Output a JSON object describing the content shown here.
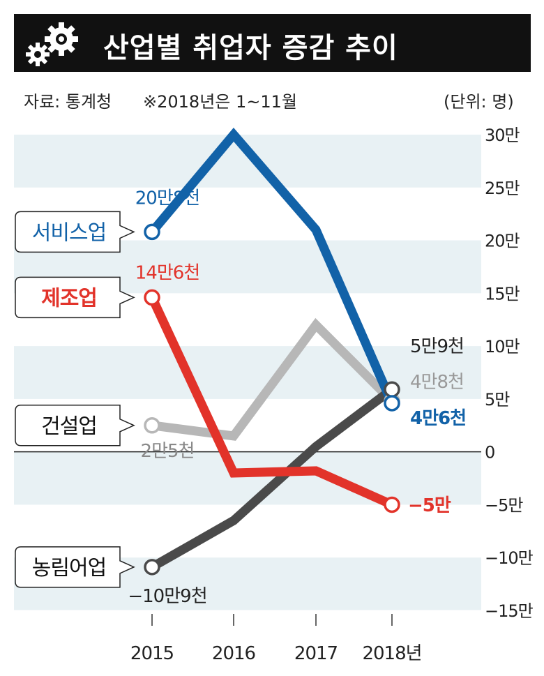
{
  "header": {
    "title": "산업별 취업자 증감 추이",
    "source": "자료: 통계청",
    "note": "※2018년은 1~11월",
    "unit": "(단위: 명)",
    "icon": "gears-icon"
  },
  "colors": {
    "service": "#1262a8",
    "manufacturing": "#e2332a",
    "construction": "#b7b7b7",
    "agriculture": "#4a4a4a",
    "band": "#e8f1f4"
  },
  "chart_data": {
    "type": "line",
    "x": [
      "2015",
      "2016",
      "2017",
      "2018년"
    ],
    "yticks": [
      300000,
      250000,
      200000,
      150000,
      100000,
      50000,
      0,
      -50000,
      -100000,
      -150000
    ],
    "ytick_labels": [
      "30만",
      "25만",
      "20만",
      "15만",
      "10만",
      "5만",
      "0",
      "−5만",
      "−10만",
      "−15만"
    ],
    "ylim": [
      -150000,
      300000
    ],
    "grid": "horizontal bands",
    "series": [
      {
        "key": "service",
        "name": "서비스업",
        "values": [
          208000,
          300000,
          210000,
          46000
        ],
        "start_label": "20만8천",
        "end_label": "4만6천"
      },
      {
        "key": "manufacturing",
        "name": "제조업",
        "values": [
          146000,
          -20000,
          -18000,
          -50000
        ],
        "start_label": "14만6천",
        "end_label": "−5만"
      },
      {
        "key": "construction",
        "name": "건설업",
        "values": [
          25000,
          15000,
          120000,
          48000
        ],
        "start_label": "2만5천",
        "end_label": "4만8천"
      },
      {
        "key": "agriculture",
        "name": "농림어업",
        "values": [
          -109000,
          -65000,
          5000,
          59000
        ],
        "start_label": "−10만9천",
        "end_label": "5만9천"
      }
    ]
  }
}
